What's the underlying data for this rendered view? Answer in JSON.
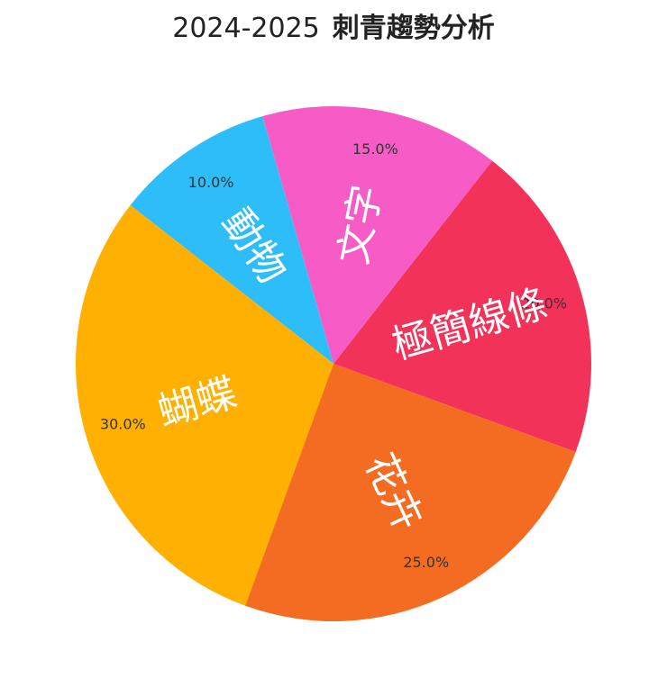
{
  "chart_data": {
    "type": "pie",
    "title": "2024-2025",
    "subtitle": "刺青趨勢分析",
    "categories": [
      "極簡線條",
      "文字",
      "動物",
      "蝴蝶",
      "花卉"
    ],
    "values": [
      20.0,
      15.0,
      10.0,
      30.0,
      25.0
    ],
    "value_labels": [
      "20.0%",
      "15.0%",
      "10.0%",
      "30.0%",
      "25.0%"
    ],
    "colors": [
      "#F3325A",
      "#F75BC6",
      "#2DBEF9",
      "#FFB000",
      "#F46C22"
    ],
    "start_angle_deg": 340,
    "direction": "counterclockwise"
  }
}
